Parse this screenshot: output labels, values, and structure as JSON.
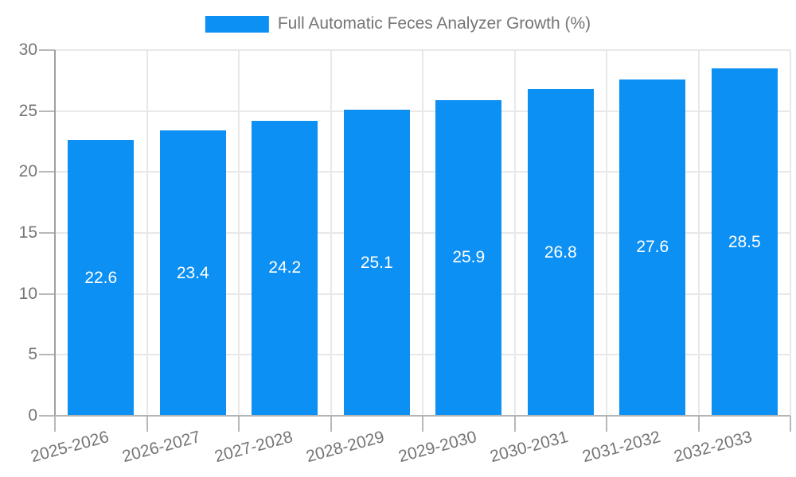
{
  "legend": {
    "swatch": "series-color-swatch",
    "label": "Full Automatic Feces Analyzer Growth (%)"
  },
  "chart_data": {
    "type": "bar",
    "title": "Full Automatic Feces Analyzer Growth (%)",
    "series_name": "Full Automatic Feces Analyzer Growth (%)",
    "categories": [
      "2025-2026",
      "2026-2027",
      "2027-2028",
      "2028-2029",
      "2029-2030",
      "2030-2031",
      "2031-2032",
      "2032-2033"
    ],
    "values": [
      22.6,
      23.4,
      24.2,
      25.1,
      25.9,
      26.8,
      27.6,
      28.5
    ],
    "bar_labels": [
      "22.6",
      "23.4",
      "24.2",
      "25.1",
      "25.9",
      "26.8",
      "27.6",
      "28.5"
    ],
    "xlabel": "",
    "ylabel": "",
    "ylim": [
      0,
      30
    ],
    "yticks": [
      0,
      5,
      10,
      15,
      20,
      25,
      30
    ],
    "grid": "horizontal and vertical light gray",
    "legend_position": "top-center",
    "bar_label_position": "center-of-bar",
    "colors": {
      "bar": "#0C90F4",
      "bar_value_text": "#FFFFFF",
      "axis_text": "#757575",
      "legend_text": "#757575",
      "grid_line": "#E8E8E8",
      "tick_line": "#B8B8B8",
      "axis_line": "#A0A0A0",
      "baseline": "#B5B5B5",
      "background": "#FFFFFF"
    }
  }
}
